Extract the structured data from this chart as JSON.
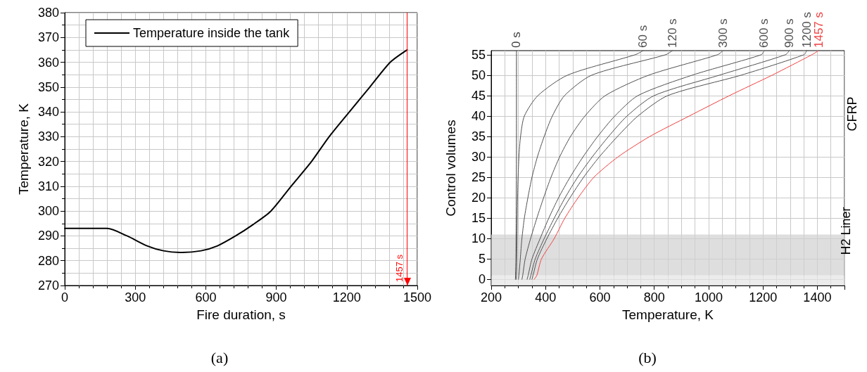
{
  "chart_data": [
    {
      "type": "line",
      "xlabel": "Fire duration, s",
      "ylabel": "Temperature, K",
      "xlim": [
        0,
        1500
      ],
      "ylim": [
        270,
        380
      ],
      "xticks": [
        0,
        300,
        600,
        900,
        1200,
        1500
      ],
      "yticks": [
        270,
        280,
        290,
        300,
        310,
        320,
        330,
        340,
        350,
        360,
        370,
        380
      ],
      "grid": true,
      "legend": "top left",
      "marker": "none",
      "line_style": "solid",
      "series": [
        {
          "name": "Temperature inside the tank",
          "color": "#000000",
          "x": [
            0,
            180,
            265,
            350,
            420,
            500,
            580,
            650,
            727,
            800,
            877,
            963,
            1050,
            1125,
            1211,
            1298,
            1385,
            1457
          ],
          "values": [
            293,
            293,
            290,
            286,
            284,
            283.3,
            284,
            286,
            290,
            294.5,
            300,
            310,
            320,
            330,
            340,
            350,
            360,
            365
          ]
        }
      ],
      "ref_lines": [
        {
          "axis": "x",
          "value": 1457,
          "label": "1457 s",
          "color": "#ff0000"
        }
      ],
      "annotations": [
        "(a)"
      ]
    },
    {
      "type": "line",
      "xlabel": "Temperature, K",
      "ylabel": "Control volumes",
      "xlim": [
        200,
        1500
      ],
      "ylim": [
        -1.5,
        56
      ],
      "xticks": [
        200,
        400,
        600,
        800,
        1000,
        1200,
        1400
      ],
      "yticks": [
        0,
        5,
        10,
        15,
        20,
        25,
        30,
        35,
        40,
        45,
        50,
        55
      ],
      "grid": true,
      "legend": false,
      "marker": "none",
      "line_style": "solid",
      "series": [
        {
          "name": "0 s",
          "color": "#404040",
          "x": [
            289,
            291,
            293,
            293
          ],
          "values": [
            0,
            5,
            35,
            56
          ]
        },
        {
          "name": "60 s",
          "color": "#505050",
          "x": [
            292,
            293,
            294,
            295,
            296,
            297,
            299,
            302,
            308,
            322,
            372,
            481,
            730,
            759
          ],
          "values": [
            0,
            1,
            5,
            10,
            15,
            20,
            25,
            30,
            35,
            40,
            45,
            50,
            55,
            56
          ]
        },
        {
          "name": "120 s",
          "color": "#505050",
          "x": [
            300,
            302,
            307,
            313,
            322,
            335,
            350,
            370,
            395,
            425,
            470,
            570,
            842,
            867
          ],
          "values": [
            0,
            1,
            5,
            10,
            15,
            20,
            25,
            30,
            35,
            40,
            45,
            50,
            55,
            56
          ]
        },
        {
          "name": "300 s",
          "color": "#505050",
          "x": [
            313,
            316,
            325,
            345,
            368,
            393,
            420,
            452,
            492,
            545,
            620,
            780,
            1033,
            1053
          ],
          "values": [
            0,
            1,
            5,
            10,
            15,
            20,
            25,
            30,
            35,
            40,
            45,
            50,
            55,
            56
          ]
        },
        {
          "name": "600 s",
          "color": "#505050",
          "x": [
            332,
            336,
            350,
            380,
            412,
            448,
            490,
            538,
            592,
            655,
            740,
            940,
            1194,
            1204
          ],
          "values": [
            0,
            1,
            5,
            10,
            15,
            20,
            25,
            30,
            35,
            40,
            45,
            50,
            55,
            56
          ]
        },
        {
          "name": "900 s",
          "color": "#505050",
          "x": [
            342,
            346,
            362,
            395,
            432,
            472,
            518,
            572,
            632,
            700,
            800,
            1040,
            1283,
            1297
          ],
          "values": [
            0,
            1,
            5,
            10,
            15,
            20,
            25,
            30,
            35,
            40,
            45,
            50,
            55,
            56
          ]
        },
        {
          "name": "1200 s",
          "color": "#505050",
          "x": [
            350,
            354,
            370,
            405,
            445,
            490,
            540,
            598,
            665,
            740,
            850,
            1120,
            1351,
            1361
          ],
          "values": [
            0,
            1,
            5,
            10,
            15,
            20,
            25,
            30,
            35,
            40,
            45,
            50,
            55,
            56
          ]
        },
        {
          "name": "1457 s",
          "color": "#f04040",
          "x": [
            358,
            368,
            385,
            432,
            471,
            520,
            578,
            667,
            784,
            929,
            1077,
            1234,
            1380,
            1405
          ],
          "values": [
            0,
            1,
            5,
            10,
            15,
            20,
            25,
            30,
            35,
            40,
            45,
            50,
            55,
            56
          ]
        }
      ],
      "bands": [
        {
          "axis": "y",
          "from": -1.5,
          "to": 1,
          "color": "#e4e4e4"
        },
        {
          "axis": "y",
          "from": 1,
          "to": 11,
          "label": "H2 Liner",
          "color": "#d0d0d0"
        }
      ],
      "annotations": [
        "CFRP",
        "(b)"
      ]
    }
  ]
}
